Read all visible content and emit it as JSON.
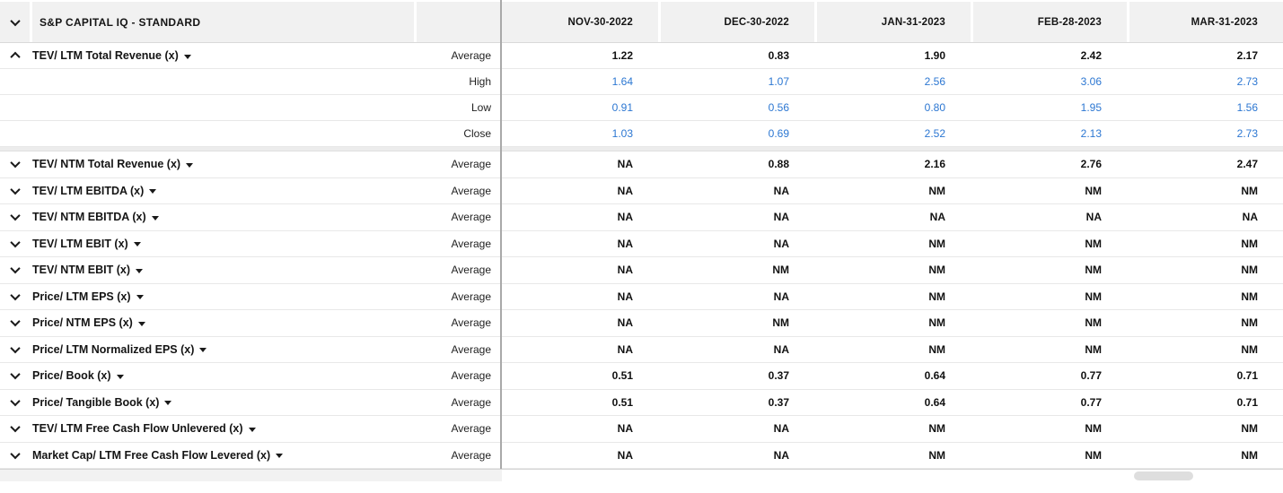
{
  "header": {
    "title": "S&P CAPITAL IQ - STANDARD",
    "columns": [
      "NOV-30-2022",
      "DEC-30-2022",
      "JAN-31-2023",
      "FEB-28-2023",
      "MAR-31-2023"
    ]
  },
  "groups": [
    {
      "label": "TEV/ LTM Total Revenue (x)",
      "expanded": true,
      "rows": [
        {
          "stat": "Average",
          "style": "avg",
          "values": [
            "1.22",
            "0.83",
            "1.90",
            "2.42",
            "2.17"
          ]
        },
        {
          "stat": "High",
          "style": "link",
          "values": [
            "1.64",
            "1.07",
            "2.56",
            "3.06",
            "2.73"
          ]
        },
        {
          "stat": "Low",
          "style": "link",
          "values": [
            "0.91",
            "0.56",
            "0.80",
            "1.95",
            "1.56"
          ]
        },
        {
          "stat": "Close",
          "style": "link",
          "values": [
            "1.03",
            "0.69",
            "2.52",
            "2.13",
            "2.73"
          ]
        }
      ]
    },
    {
      "label": "TEV/ NTM Total Revenue (x)",
      "expanded": false,
      "rows": [
        {
          "stat": "Average",
          "style": "avg",
          "values": [
            "NA",
            "0.88",
            "2.16",
            "2.76",
            "2.47"
          ]
        }
      ]
    },
    {
      "label": "TEV/ LTM EBITDA (x)",
      "expanded": false,
      "rows": [
        {
          "stat": "Average",
          "style": "avg",
          "values": [
            "NA",
            "NA",
            "NM",
            "NM",
            "NM"
          ]
        }
      ]
    },
    {
      "label": "TEV/ NTM EBITDA (x)",
      "expanded": false,
      "rows": [
        {
          "stat": "Average",
          "style": "avg",
          "values": [
            "NA",
            "NA",
            "NA",
            "NA",
            "NA"
          ]
        }
      ]
    },
    {
      "label": "TEV/ LTM EBIT (x)",
      "expanded": false,
      "rows": [
        {
          "stat": "Average",
          "style": "avg",
          "values": [
            "NA",
            "NA",
            "NM",
            "NM",
            "NM"
          ]
        }
      ]
    },
    {
      "label": "TEV/ NTM EBIT (x)",
      "expanded": false,
      "rows": [
        {
          "stat": "Average",
          "style": "avg",
          "values": [
            "NA",
            "NM",
            "NM",
            "NM",
            "NM"
          ]
        }
      ]
    },
    {
      "label": "Price/ LTM EPS (x)",
      "expanded": false,
      "rows": [
        {
          "stat": "Average",
          "style": "avg",
          "values": [
            "NA",
            "NA",
            "NM",
            "NM",
            "NM"
          ]
        }
      ]
    },
    {
      "label": "Price/ NTM EPS (x)",
      "expanded": false,
      "rows": [
        {
          "stat": "Average",
          "style": "avg",
          "values": [
            "NA",
            "NM",
            "NM",
            "NM",
            "NM"
          ]
        }
      ]
    },
    {
      "label": "Price/ LTM Normalized EPS (x)",
      "expanded": false,
      "rows": [
        {
          "stat": "Average",
          "style": "avg",
          "values": [
            "NA",
            "NA",
            "NM",
            "NM",
            "NM"
          ]
        }
      ]
    },
    {
      "label": "Price/ Book (x)",
      "expanded": false,
      "rows": [
        {
          "stat": "Average",
          "style": "avg",
          "values": [
            "0.51",
            "0.37",
            "0.64",
            "0.77",
            "0.71"
          ]
        }
      ]
    },
    {
      "label": "Price/ Tangible Book (x)",
      "expanded": false,
      "rows": [
        {
          "stat": "Average",
          "style": "avg",
          "values": [
            "0.51",
            "0.37",
            "0.64",
            "0.77",
            "0.71"
          ]
        }
      ]
    },
    {
      "label": "TEV/ LTM Free Cash Flow Unlevered (x)",
      "expanded": false,
      "rows": [
        {
          "stat": "Average",
          "style": "avg",
          "values": [
            "NA",
            "NA",
            "NM",
            "NM",
            "NM"
          ]
        }
      ]
    },
    {
      "label": "Market Cap/ LTM Free Cash Flow Levered (x)",
      "expanded": false,
      "rows": [
        {
          "stat": "Average",
          "style": "avg",
          "values": [
            "NA",
            "NA",
            "NM",
            "NM",
            "NM"
          ]
        }
      ]
    }
  ],
  "icons": {
    "section_collapse": "chevron-up",
    "section_expand": "chevron-down",
    "metric_dropdown": "caret-down"
  },
  "colors": {
    "link_blue": "#2c77d2",
    "header_bg": "#f1f1f1",
    "row_border": "#e8e8e8",
    "divider": "#a9a9a9",
    "separator_band": "#ececec",
    "scroll_thumb": "#dedede"
  }
}
